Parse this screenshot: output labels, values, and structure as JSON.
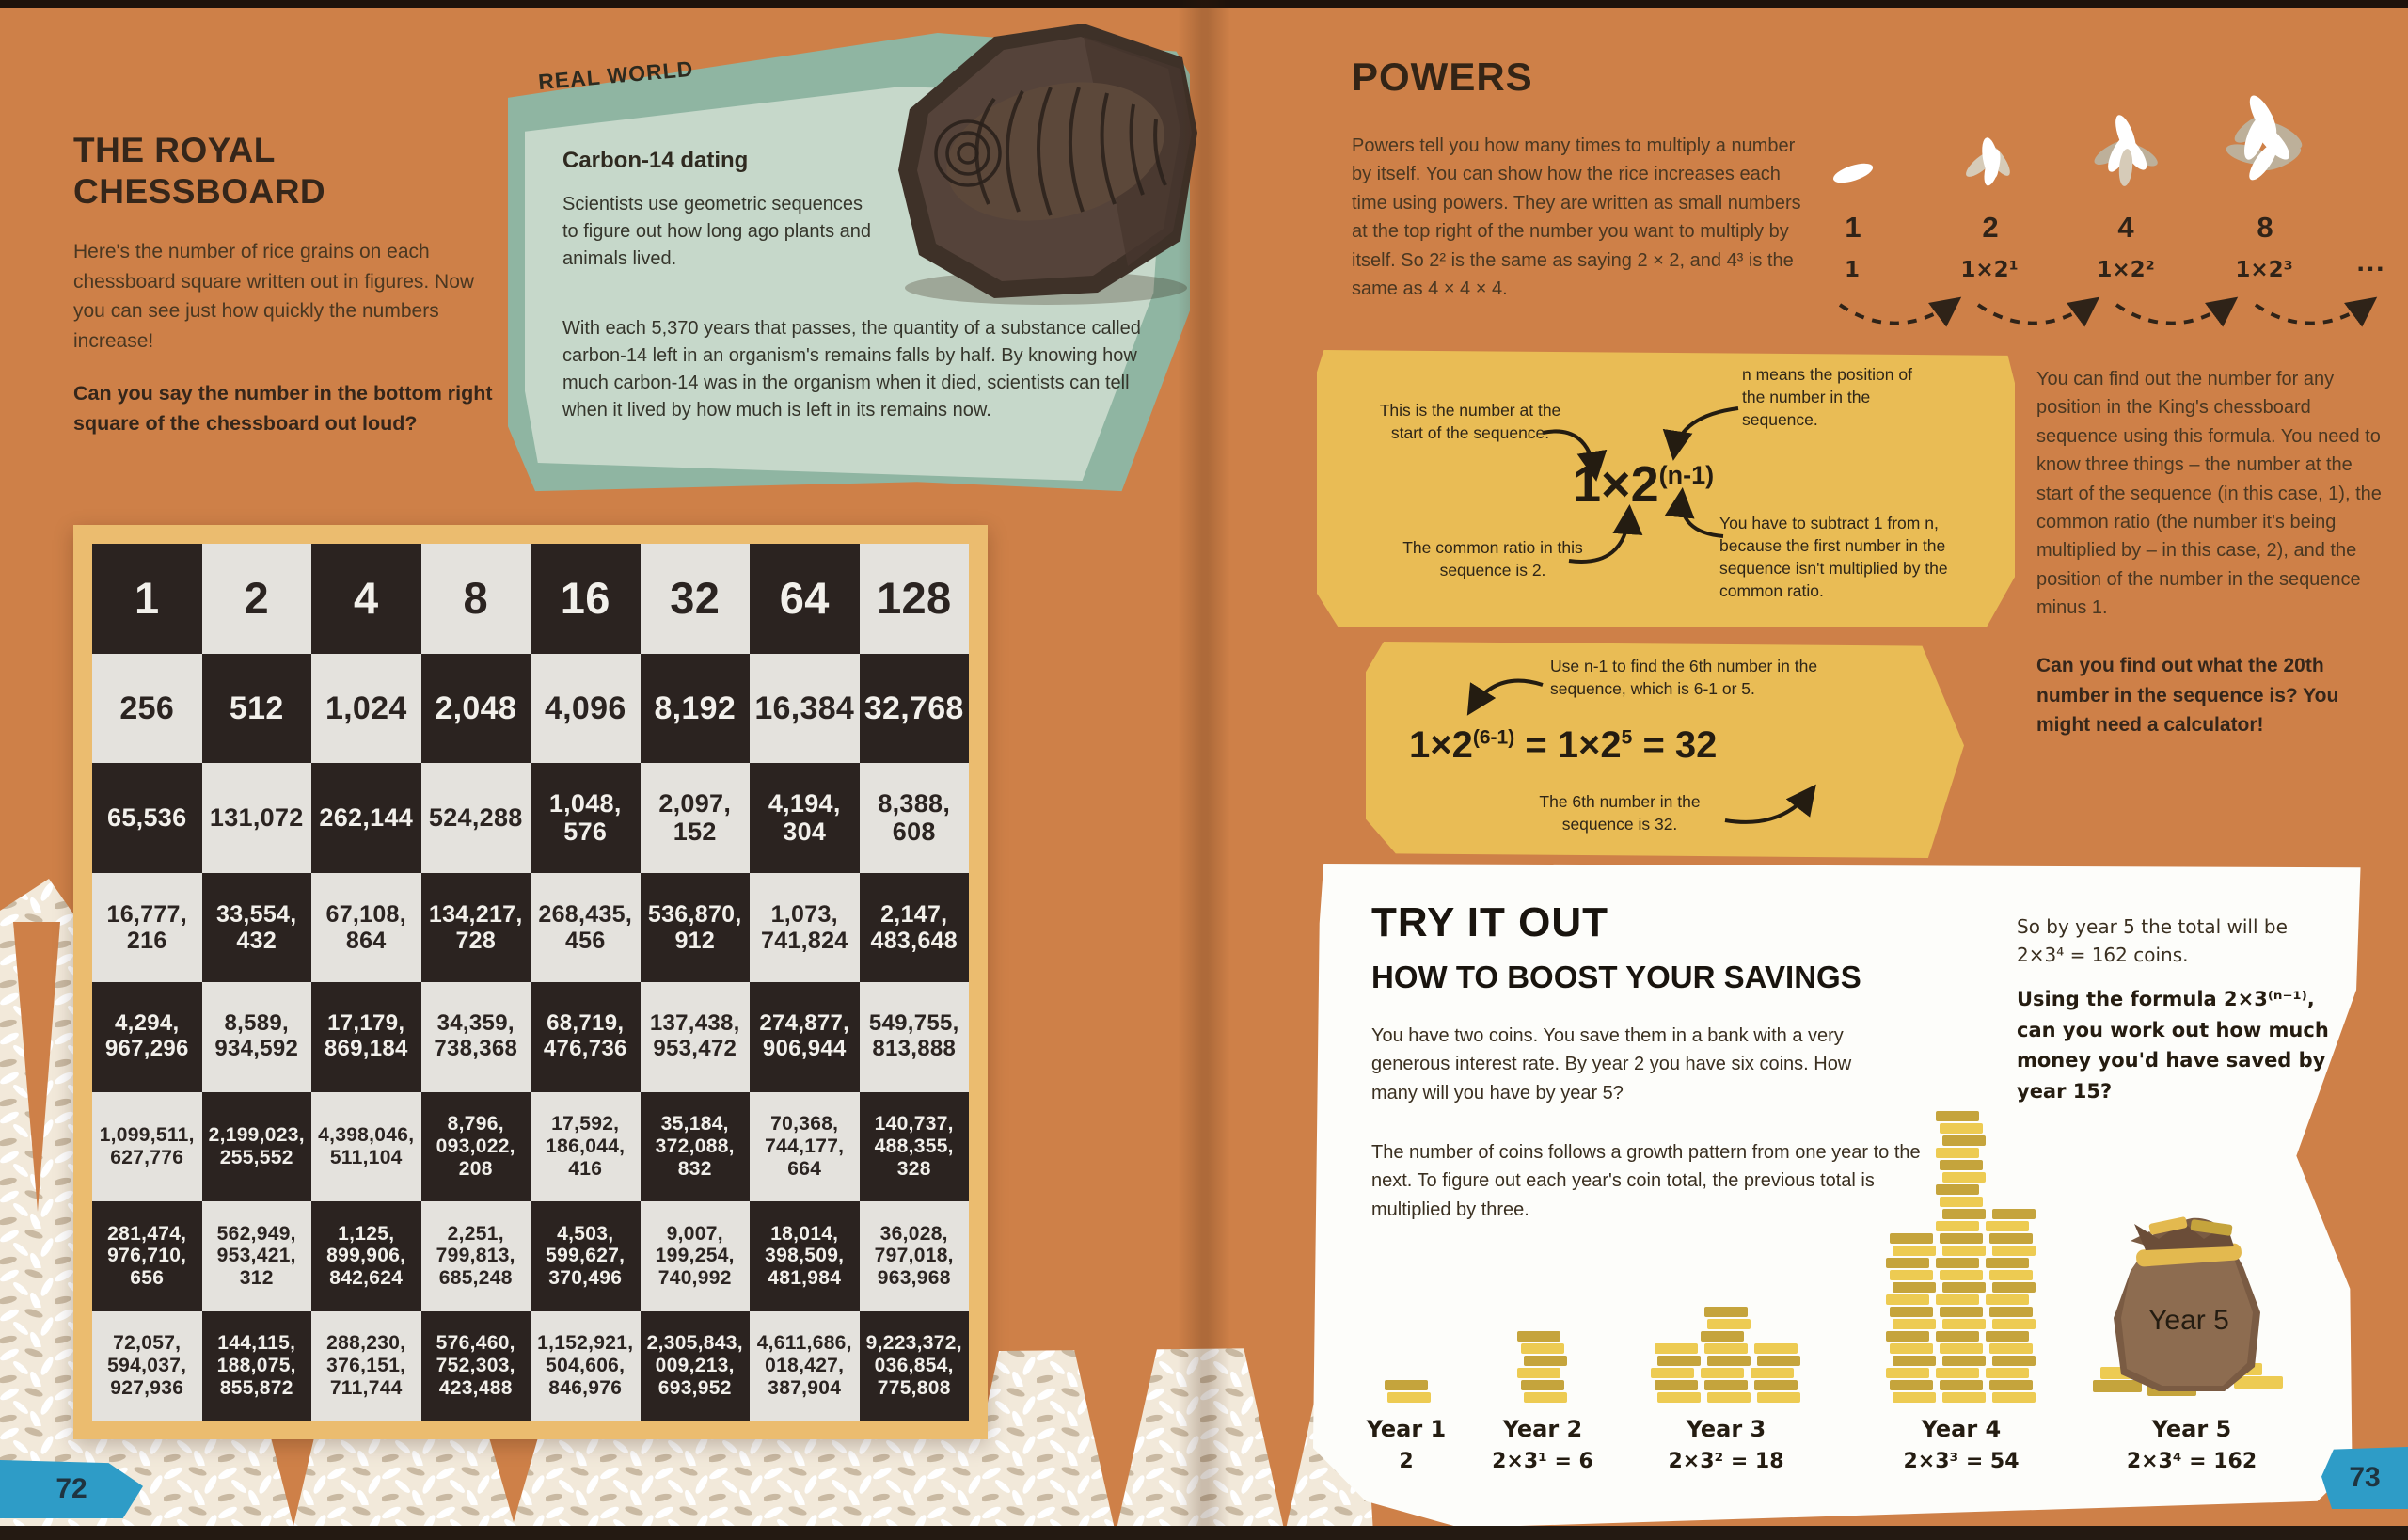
{
  "page_left": {
    "page_number": "72",
    "title": "THE ROYAL CHESSBOARD",
    "intro": "Here's the number of rice grains on each chessboard square written out in figures. Now you can see just how quickly the numbers increase!",
    "question": "Can you say the number in the bottom right square of the chessboard out loud?",
    "real_world": {
      "banner": "REAL WORLD",
      "heading": "Carbon-14 dating",
      "body1": "Scientists use geometric sequences to figure out how long ago plants and animals lived.",
      "body2": "With each 5,370 years that passes, the quantity of a substance called carbon-14 left in an organism's remains falls by half. By knowing how much carbon-14 was in the organism when it died, scientists can tell when it lived by how much is left in its remains now."
    },
    "chessboard": {
      "rows": [
        [
          "1",
          "2",
          "4",
          "8",
          "16",
          "32",
          "64",
          "128"
        ],
        [
          "256",
          "512",
          "1,024",
          "2,048",
          "4,096",
          "8,192",
          "16,384",
          "32,768"
        ],
        [
          "65,536",
          "131,072",
          "262,144",
          "524,288",
          "1,048,\n576",
          "2,097,\n152",
          "4,194,\n304",
          "8,388,\n608"
        ],
        [
          "16,777,\n216",
          "33,554,\n432",
          "67,108,\n864",
          "134,217,\n728",
          "268,435,\n456",
          "536,870,\n912",
          "1,073,\n741,824",
          "2,147,\n483,648"
        ],
        [
          "4,294,\n967,296",
          "8,589,\n934,592",
          "17,179,\n869,184",
          "34,359,\n738,368",
          "68,719,\n476,736",
          "137,438,\n953,472",
          "274,877,\n906,944",
          "549,755,\n813,888"
        ],
        [
          "1,099,511,\n627,776",
          "2,199,023,\n255,552",
          "4,398,046,\n511,104",
          "8,796,\n093,022,\n208",
          "17,592,\n186,044,\n416",
          "35,184,\n372,088,\n832",
          "70,368,\n744,177,\n664",
          "140,737,\n488,355,\n328"
        ],
        [
          "281,474,\n976,710,\n656",
          "562,949,\n953,421,\n312",
          "1,125,\n899,906,\n842,624",
          "2,251,\n799,813,\n685,248",
          "4,503,\n599,627,\n370,496",
          "9,007,\n199,254,\n740,992",
          "18,014,\n398,509,\n481,984",
          "36,028,\n797,018,\n963,968"
        ],
        [
          "72,057,\n594,037,\n927,936",
          "144,115,\n188,075,\n855,872",
          "288,230,\n376,151,\n711,744",
          "576,460,\n752,303,\n423,488",
          "1,152,921,\n504,606,\n846,976",
          "2,305,843,\n009,213,\n693,952",
          "4,611,686,\n018,427,\n387,904",
          "9,223,372,\n036,854,\n775,808"
        ]
      ]
    }
  },
  "page_right": {
    "page_number": "73",
    "title": "POWERS",
    "intro": "Powers tell you how many times to multiply a number by itself. You can show how the rice increases each time using powers. They are written as small numbers at the top right of the number you want to multiply by itself. So 2² is the same as saying 2 × 2, and 4³ is the same as 4 × 4 × 4.",
    "rice_sequence": {
      "counts": [
        "1",
        "2",
        "4",
        "8"
      ],
      "formulas": [
        "1",
        "1×2¹",
        "1×2²",
        "1×2³"
      ],
      "ellipsis": "..."
    },
    "formula_box": {
      "formula_base": "1×2",
      "formula_exp": "(n-1)",
      "note_start": "This is the number at the start of the sequence.",
      "note_n": "n means the position of the number in the sequence.",
      "note_ratio": "The common ratio in this sequence is 2.",
      "note_subtract": "You have to subtract 1 from n, because the first number in the sequence isn't multiplied by the common ratio."
    },
    "side_text": "You can find out the number for any position in the King's chessboard sequence using this formula. You need to know three things – the number at the start of the sequence (in this case, 1), the common ratio (the number it's being multiplied by – in this case, 2), and the position of the number in the sequence minus 1.",
    "side_question": "Can you find out what the 20th number in the sequence is? You might need a calculator!",
    "example_box": {
      "note_top": "Use n-1 to find the 6th number in the sequence, which is 6-1 or 5.",
      "f1_base": "1×2",
      "f1_exp": "(6-1)",
      "f2_base": " = 1×2",
      "f2_exp": "5",
      "f3": " = 32",
      "note_bottom": "The 6th number in the sequence is 32."
    },
    "try_it_out": {
      "title": "TRY IT OUT",
      "subtitle": "HOW TO BOOST YOUR SAVINGS",
      "para1": "You have two coins. You save them in a bank with a very generous interest rate. By year 2 you have six coins. How many will you have by year 5?",
      "para2": "The number of coins follows a growth pattern from one year to the next. To figure out each year's coin total, the previous total is multiplied by three.",
      "note_year5": "So by year 5 the total will be\n2×3⁴ = 162 coins.",
      "question": "Using the formula 2×3⁽ⁿ⁻¹⁾, can you work out how much money you'd have saved by year 15?",
      "bag_label": "Year 5",
      "years": [
        {
          "label": "Year 1",
          "formula": "2",
          "stacks": [
            2
          ]
        },
        {
          "label": "Year 2",
          "formula": "2×3¹ = 6",
          "stacks": [
            6
          ]
        },
        {
          "label": "Year 3",
          "formula": "2×3² = 18",
          "stacks": [
            5,
            8,
            5
          ]
        },
        {
          "label": "Year 4",
          "formula": "2×3³ = 54",
          "stacks": [
            14,
            24,
            16
          ]
        },
        {
          "label": "Year 5",
          "formula": "2×3⁴ = 162",
          "stacks": []
        }
      ]
    }
  },
  "colors": {
    "background_orange": "#CE8048",
    "board_frame_tan": "#EBBC6F",
    "square_dark": "#2B2320",
    "square_light": "#E4E2DD",
    "green_banner": "#8FB5A2",
    "green_panel": "#C6D8CA",
    "yellow_panel": "#E9BC55",
    "page_tab_blue": "#2E9CC7",
    "coin_gold": "#EDCB52"
  }
}
